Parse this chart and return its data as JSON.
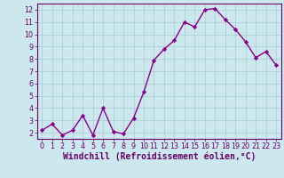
{
  "x": [
    0,
    1,
    2,
    3,
    4,
    5,
    6,
    7,
    8,
    9,
    10,
    11,
    12,
    13,
    14,
    15,
    16,
    17,
    18,
    19,
    20,
    21,
    22,
    23
  ],
  "y": [
    2.2,
    2.7,
    1.8,
    2.2,
    3.4,
    1.8,
    4.0,
    2.1,
    1.9,
    3.2,
    5.3,
    7.9,
    8.8,
    9.5,
    11.0,
    10.6,
    12.0,
    12.1,
    11.2,
    10.4,
    9.4,
    8.1,
    8.6,
    7.5
  ],
  "line_color": "#880088",
  "marker": "D",
  "marker_size": 2.2,
  "bg_color": "#cce8ee",
  "grid_color": "#aaccd4",
  "xlabel": "Windchill (Refroidissement éolien,°C)",
  "xlim": [
    -0.5,
    23.5
  ],
  "ylim": [
    1.5,
    12.5
  ],
  "yticks": [
    2,
    3,
    4,
    5,
    6,
    7,
    8,
    9,
    10,
    11,
    12
  ],
  "xticks": [
    0,
    1,
    2,
    3,
    4,
    5,
    6,
    7,
    8,
    9,
    10,
    11,
    12,
    13,
    14,
    15,
    16,
    17,
    18,
    19,
    20,
    21,
    22,
    23
  ],
  "tick_label_fontsize": 5.8,
  "xlabel_fontsize": 7.0,
  "line_width": 1.0,
  "text_color": "#660066",
  "spine_color": "#660066"
}
